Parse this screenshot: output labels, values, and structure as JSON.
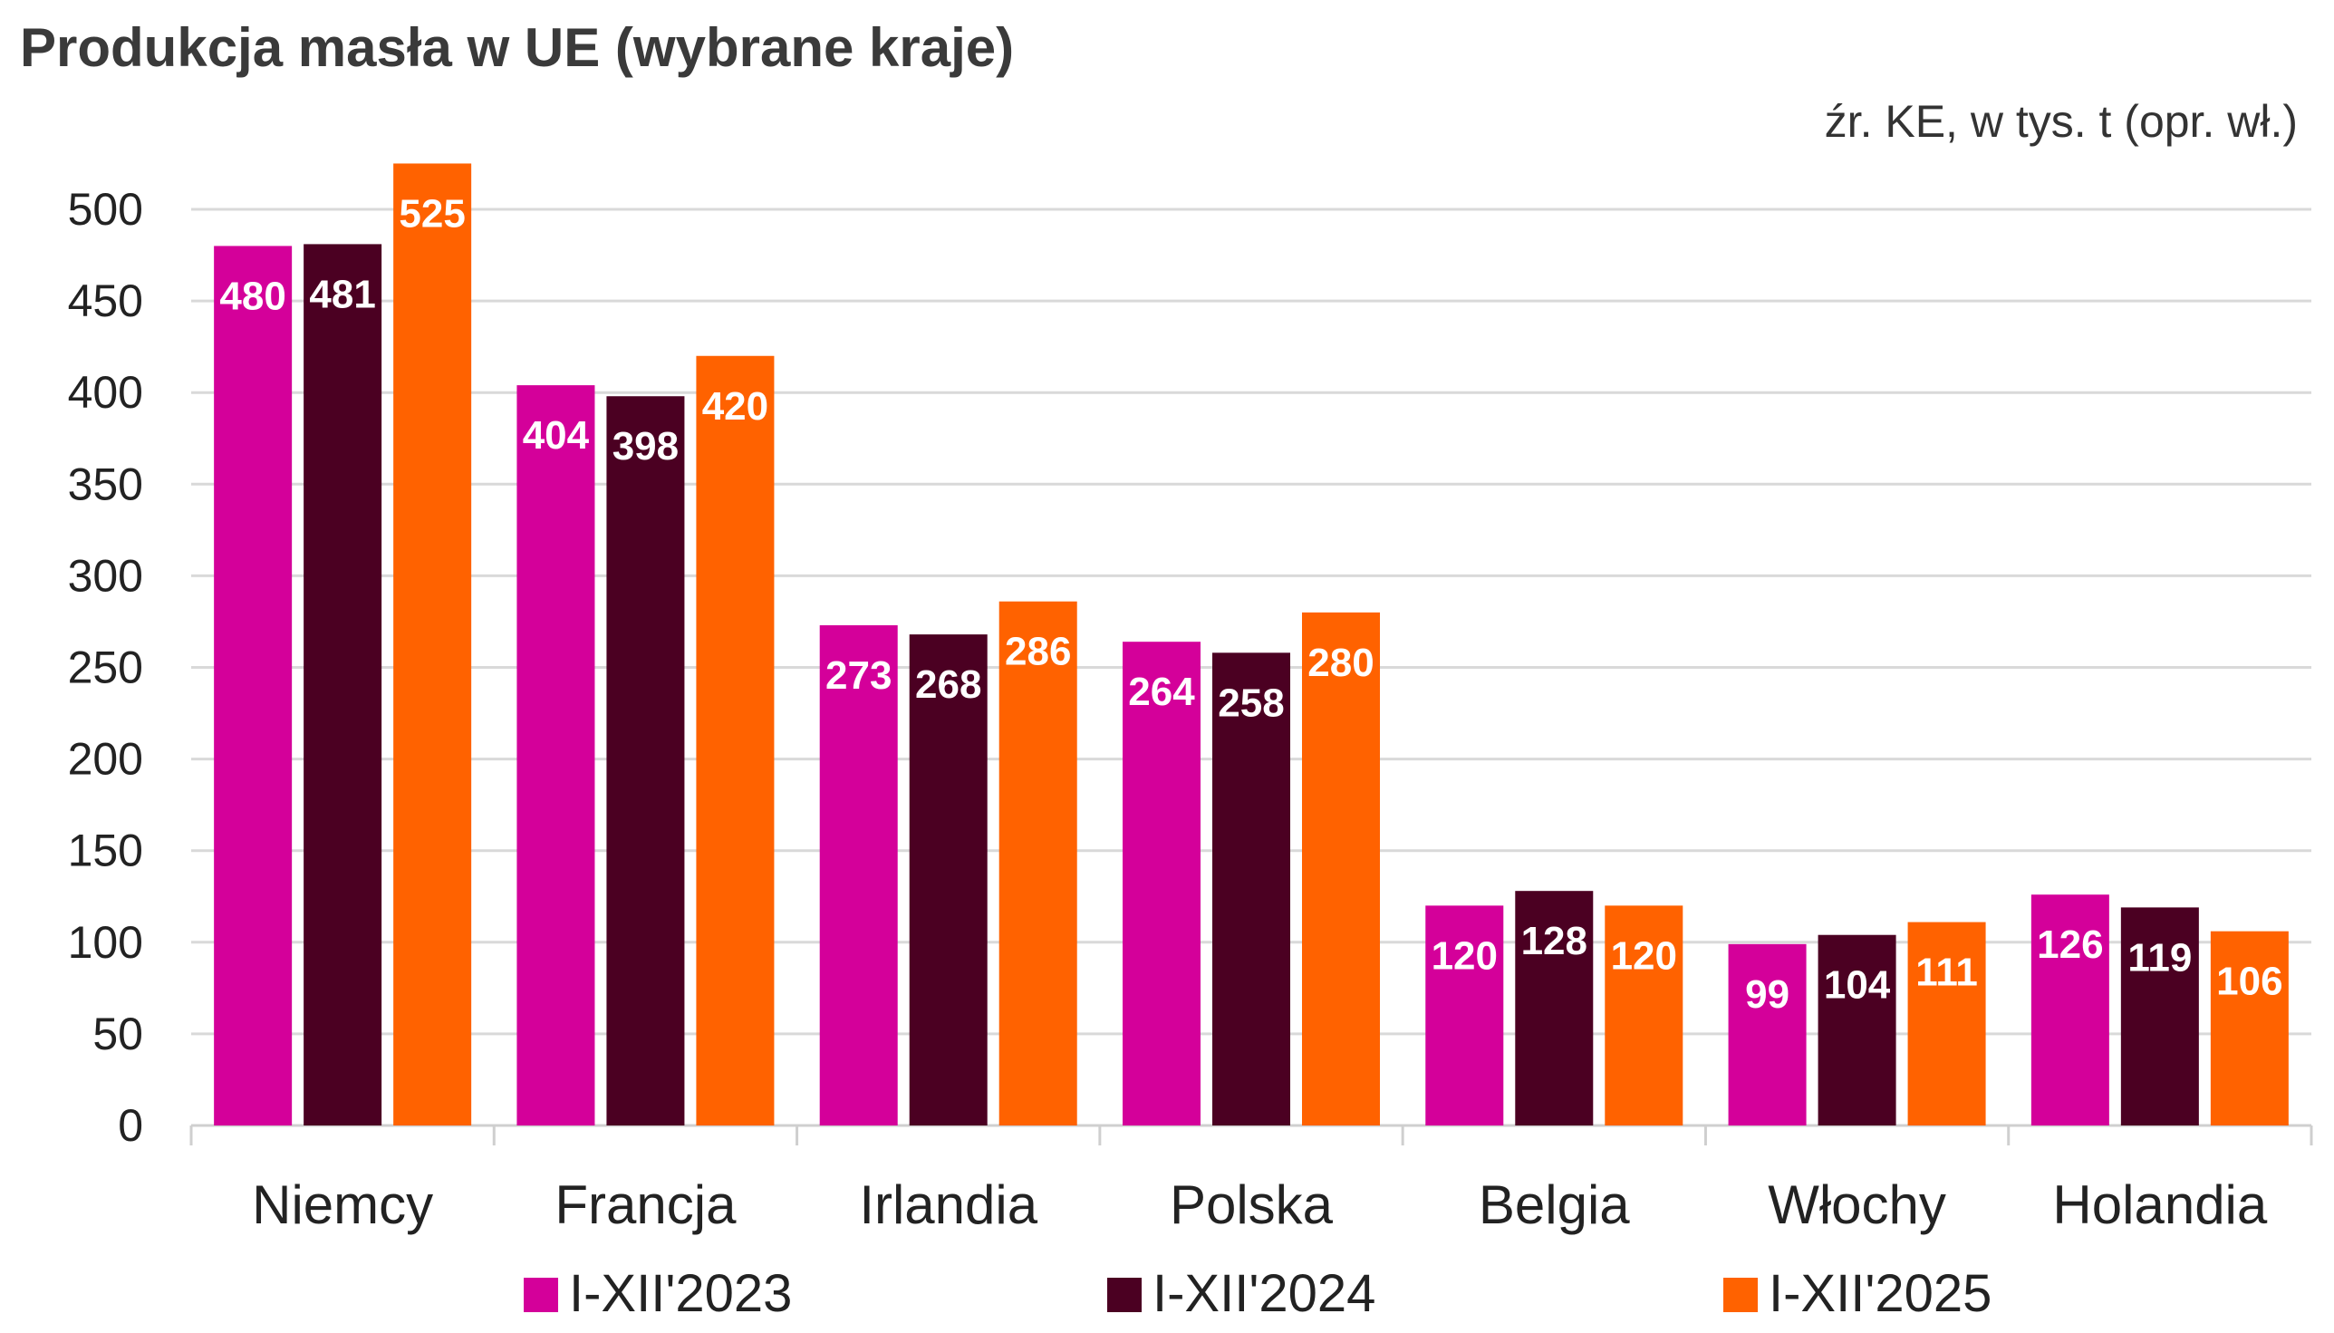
{
  "chart_data": {
    "type": "bar",
    "title": "Produkcja masła w UE (wybrane kraje)",
    "subtitle": "źr. KE, w tys. t (opr. wł.)",
    "xlabel": "",
    "ylabel": "",
    "ylim": [
      0,
      500
    ],
    "yticks": [
      0,
      50,
      100,
      150,
      200,
      250,
      300,
      350,
      400,
      450,
      500
    ],
    "grid": true,
    "legend_position": "bottom",
    "categories": [
      "Niemcy",
      "Francja",
      "Irlandia",
      "Polska",
      "Belgia",
      "Włochy",
      "Holandia"
    ],
    "series": [
      {
        "name": "I-XII'2023",
        "color": "#d4009a",
        "values": [
          480,
          404,
          273,
          264,
          120,
          99,
          126
        ]
      },
      {
        "name": "I-XII'2024",
        "color": "#4b0022",
        "values": [
          481,
          398,
          268,
          258,
          128,
          104,
          119
        ]
      },
      {
        "name": "I-XII'2025",
        "color": "#ff6200",
        "values": [
          525,
          420,
          286,
          280,
          120,
          111,
          106
        ]
      }
    ]
  }
}
